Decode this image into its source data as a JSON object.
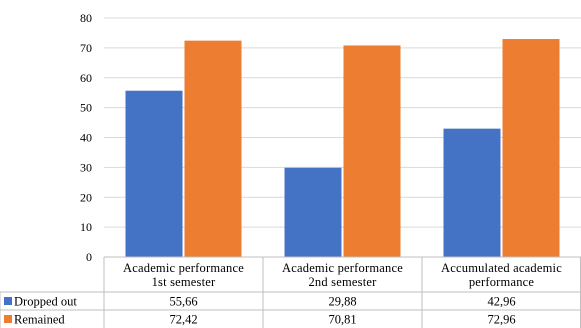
{
  "chart_data": {
    "type": "bar",
    "categories": [
      [
        "Academic performance",
        "1st semester"
      ],
      [
        "Academic performance",
        "2nd semester"
      ],
      [
        "Accumulated academic",
        "performance"
      ]
    ],
    "series": [
      {
        "name": "Dropped out",
        "values": [
          55.66,
          29.88,
          42.96
        ],
        "labels": [
          "55,66",
          "29,88",
          "42,96"
        ],
        "color": "#4472c4"
      },
      {
        "name": "Remained",
        "values": [
          72.42,
          70.81,
          72.96
        ],
        "labels": [
          "72,42",
          "70,81",
          "72,96"
        ],
        "color": "#ed7d31"
      }
    ],
    "ylim": [
      0,
      80
    ],
    "yticks": [
      0,
      10,
      20,
      30,
      40,
      50,
      60,
      70,
      80
    ],
    "grid": true,
    "legend": "data-table-left",
    "data_table": true
  }
}
